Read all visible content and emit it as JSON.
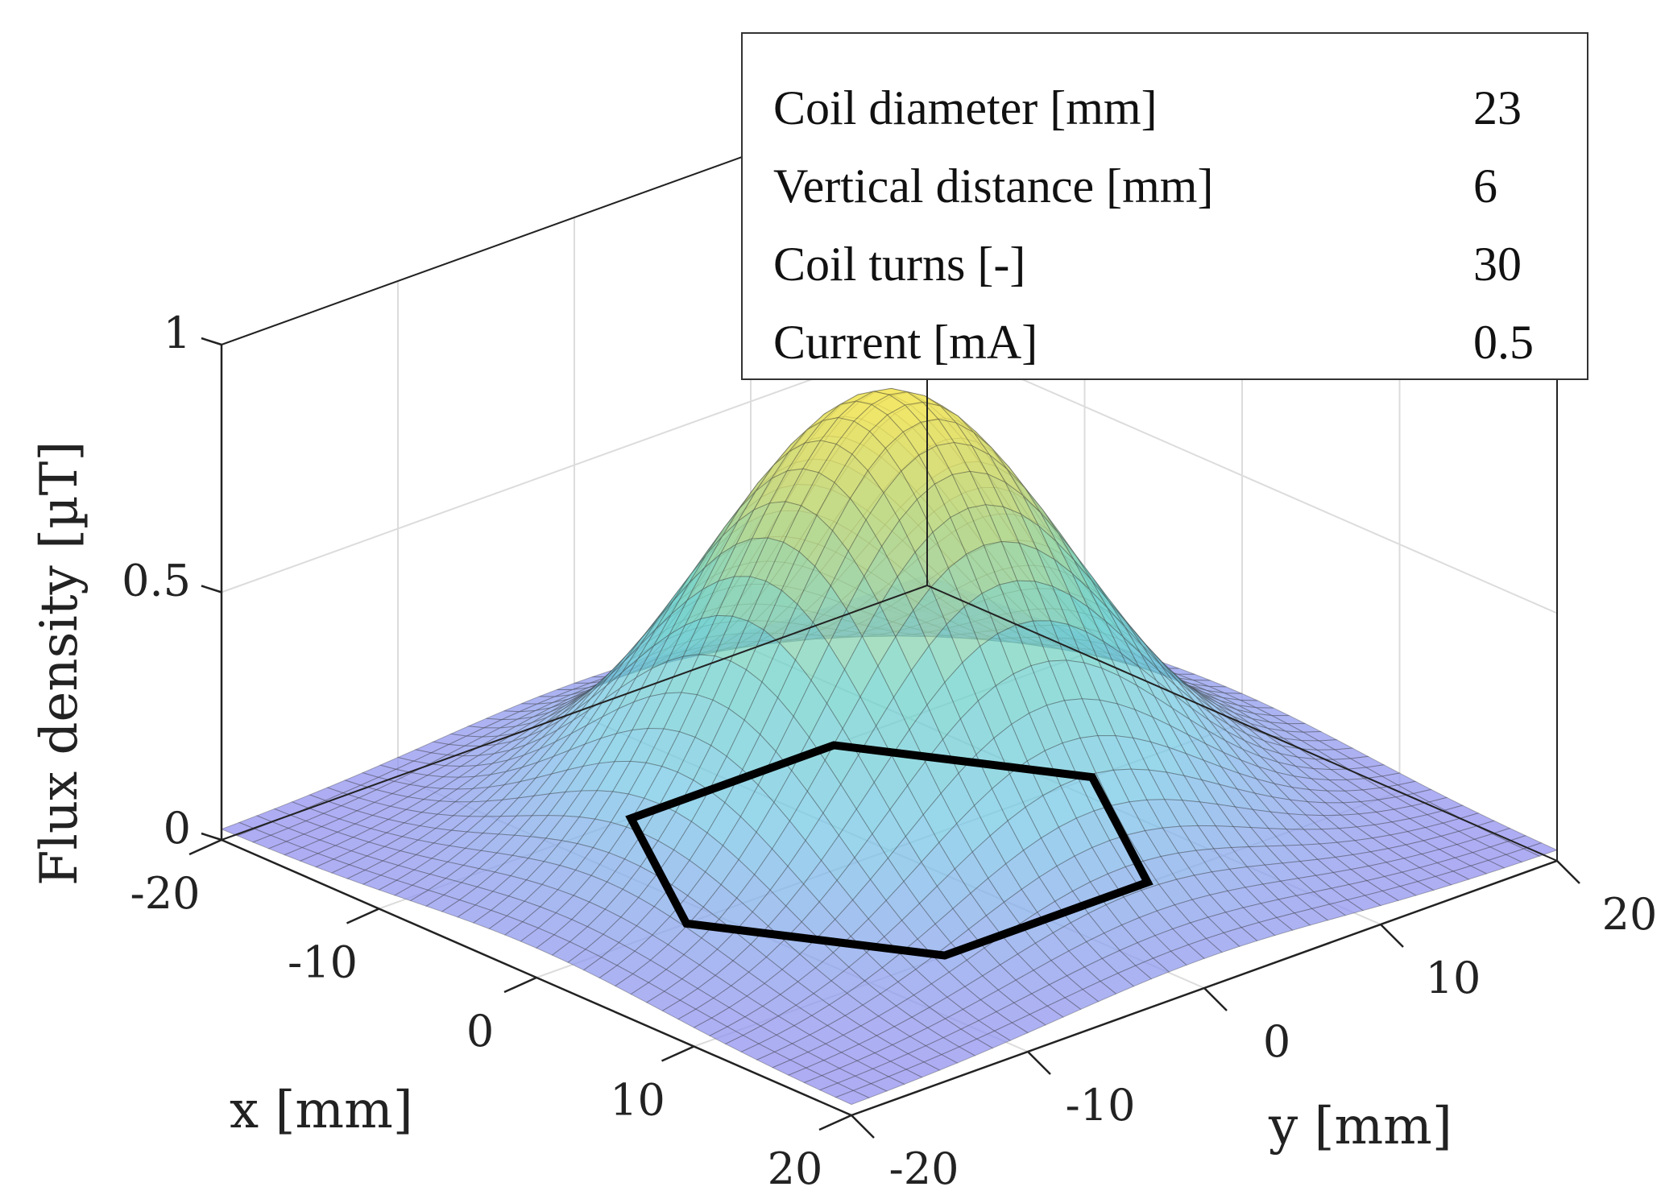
{
  "chart_data": {
    "type": "surface",
    "title": "",
    "xlabel": "x [mm]",
    "ylabel": "y [mm]",
    "zlabel": "Flux density [µT]",
    "xlim": [
      -20,
      20
    ],
    "ylim": [
      -20,
      20
    ],
    "zlim": [
      0,
      1
    ],
    "x_ticks": [
      "-20",
      "-10",
      "0",
      "10",
      "20"
    ],
    "y_ticks": [
      "-20",
      "-10",
      "0",
      "10",
      "20"
    ],
    "z_ticks": [
      "0",
      "0.5",
      "1"
    ],
    "grid": true,
    "surface": {
      "peak_value": 0.92,
      "peak_at": [
        0,
        0
      ],
      "shape": "bell",
      "colormap": "parula",
      "alpha": 0.5
    },
    "coil_outline": {
      "shape": "hexagon",
      "color": "#000000",
      "plane_z": 0
    },
    "legend": {
      "placement": "top-right",
      "rows": [
        {
          "label": "Coil diameter [mm]",
          "value": "23"
        },
        {
          "label": "Vertical distance [mm]",
          "value": "6"
        },
        {
          "label": "Coil turns [-]",
          "value": "30"
        },
        {
          "label": "Current [mA]",
          "value": "0.5"
        }
      ]
    }
  }
}
